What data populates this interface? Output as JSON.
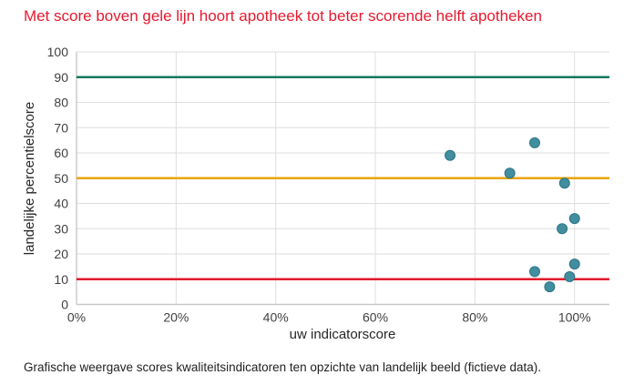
{
  "title": "Met score boven gele lijn hoort apotheek tot beter scorende helft apotheken",
  "caption": "Grafische weergave scores kwaliteitsindicatoren ten opzichte van landelijk beeld (fictieve data).",
  "colors": {
    "title": "#e8192e",
    "caption": "#1f1f1f",
    "gridline": "#dedede",
    "axis": "#c9c9c9",
    "tick_text": "#404040",
    "point_fill": "#418e9e",
    "point_stroke": "#2d7487",
    "green_line": "#12795d",
    "orange_line": "#eaa400",
    "red_line": "#e01a2b"
  },
  "chart_data": {
    "type": "scatter",
    "title": "Met score boven gele lijn hoort apotheek tot beter scorende helft apotheken",
    "xlabel": "uw indicatorscore",
    "ylabel": "landelijke percentielscore",
    "xlim": [
      0,
      107
    ],
    "ylim": [
      0,
      100
    ],
    "grid": true,
    "legend": false,
    "x_ticks": {
      "values": [
        0,
        20,
        40,
        60,
        80,
        100
      ],
      "labels": [
        "0%",
        "20%",
        "40%",
        "60%",
        "80%",
        "100%"
      ]
    },
    "y_ticks": {
      "values": [
        0,
        10,
        20,
        30,
        40,
        50,
        60,
        70,
        80,
        90,
        100
      ],
      "labels": [
        "0",
        "10",
        "20",
        "30",
        "40",
        "50",
        "60",
        "70",
        "80",
        "90",
        "100"
      ]
    },
    "points": [
      {
        "x": 75,
        "y": 59
      },
      {
        "x": 87,
        "y": 52
      },
      {
        "x": 92,
        "y": 64
      },
      {
        "x": 98,
        "y": 48
      },
      {
        "x": 100,
        "y": 34
      },
      {
        "x": 97.5,
        "y": 30
      },
      {
        "x": 100,
        "y": 16
      },
      {
        "x": 92,
        "y": 13
      },
      {
        "x": 99,
        "y": 11
      },
      {
        "x": 95,
        "y": 7
      }
    ],
    "reference_lines": [
      {
        "y": 90,
        "color": "#12795d",
        "name": "green-line"
      },
      {
        "y": 50,
        "color": "#eaa400",
        "name": "orange-line"
      },
      {
        "y": 10,
        "color": "#e01a2b",
        "name": "red-line"
      }
    ]
  }
}
